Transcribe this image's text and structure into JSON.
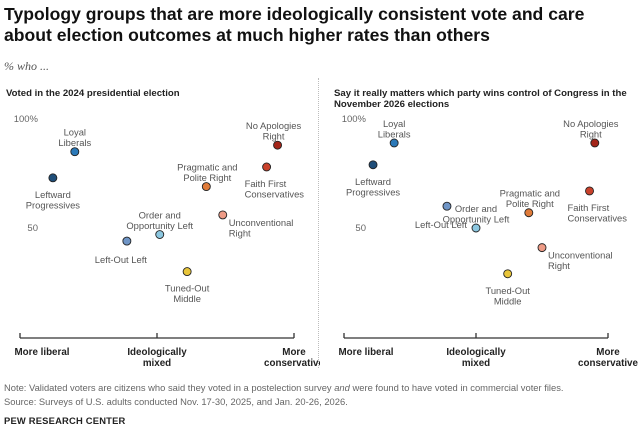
{
  "title": "Typology groups that are more ideologically consistent vote and care about election outcomes at much higher rates than others",
  "subtitle": "% who ...",
  "x_axis_labels": [
    "More liberal",
    "Ideologically mixed",
    "More conservative"
  ],
  "chart_data": [
    {
      "type": "scatter",
      "title": "Voted in the 2024 presidential election",
      "y_ticks": [
        "100%",
        "50"
      ],
      "ylim": [
        0,
        100
      ],
      "xlim": [
        0,
        100
      ],
      "grid": false,
      "points": [
        {
          "name": "Leftward Progressives",
          "x": 12,
          "y": 73,
          "color": "#1f4e79"
        },
        {
          "name": "Loyal Liberals",
          "x": 20,
          "y": 85,
          "color": "#2b79b8"
        },
        {
          "name": "Left-Out Left",
          "x": 39,
          "y": 44,
          "color": "#6f95c6"
        },
        {
          "name": "Order and Opportunity Left",
          "x": 51,
          "y": 47,
          "color": "#8cc7e0"
        },
        {
          "name": "Tuned-Out Middle",
          "x": 61,
          "y": 30,
          "color": "#e8c53a"
        },
        {
          "name": "Pragmatic and Polite Right",
          "x": 68,
          "y": 69,
          "color": "#e07b39"
        },
        {
          "name": "Unconventional Right",
          "x": 74,
          "y": 56,
          "color": "#ee9b86"
        },
        {
          "name": "Faith First Conservatives",
          "x": 90,
          "y": 78,
          "color": "#c9412b"
        },
        {
          "name": "No Apologies Right",
          "x": 94,
          "y": 88,
          "color": "#a32418"
        }
      ]
    },
    {
      "type": "scatter",
      "title": "Say it really matters which party wins control of Congress in the November 2026 elections",
      "y_ticks": [
        "100%",
        "50"
      ],
      "ylim": [
        0,
        100
      ],
      "xlim": [
        0,
        100
      ],
      "grid": false,
      "points": [
        {
          "name": "Leftward Progressives",
          "x": 11,
          "y": 79,
          "color": "#1f4e79"
        },
        {
          "name": "Loyal Liberals",
          "x": 19,
          "y": 89,
          "color": "#2b79b8"
        },
        {
          "name": "Left-Out Left",
          "x": 39,
          "y": 60,
          "color": "#6f95c6"
        },
        {
          "name": "Order and Opportunity Left",
          "x": 50,
          "y": 50,
          "color": "#8cc7e0"
        },
        {
          "name": "Tuned-Out Middle",
          "x": 62,
          "y": 29,
          "color": "#e8c53a"
        },
        {
          "name": "Pragmatic and Polite Right",
          "x": 70,
          "y": 57,
          "color": "#e07b39"
        },
        {
          "name": "Unconventional Right",
          "x": 75,
          "y": 41,
          "color": "#ee9b86"
        },
        {
          "name": "Faith First Conservatives",
          "x": 93,
          "y": 67,
          "color": "#c9412b"
        },
        {
          "name": "No Apologies Right",
          "x": 95,
          "y": 89,
          "color": "#a32418"
        }
      ]
    }
  ],
  "note_line1": "Note: Validated voters are citizens who said they voted in a postelection survey and were found to have voted in commercial voter files.",
  "note_line2": "Source: Surveys of U.S. adults conducted Nov. 17-30, 2025, and Jan. 20-26, 2026.",
  "brand": "PEW RESEARCH CENTER"
}
